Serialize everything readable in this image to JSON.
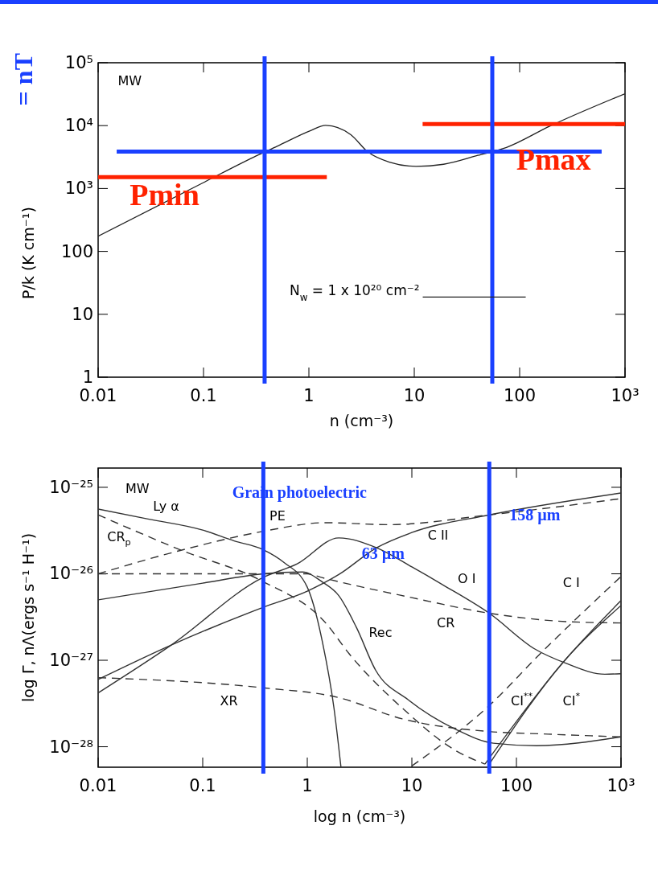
{
  "chart_data": [
    {
      "type": "line",
      "xlabel": "n (cm⁻³)",
      "ylabel": "P/k (K cm⁻¹)",
      "log": "xy",
      "legend": "bottom",
      "xlim": [
        0.01,
        1000
      ],
      "ylim": [
        1,
        100000
      ],
      "xticks": [
        0.01,
        0.1,
        1,
        10,
        100,
        {
          "value": 1000,
          "label": "10³"
        }
      ],
      "yticks": [
        1,
        10,
        100,
        {
          "value": 1000,
          "label": "10³"
        },
        {
          "value": 10000,
          "label": "10⁴"
        },
        {
          "value": 100000,
          "label": "10⁵"
        }
      ],
      "annotations": [
        "MW",
        "= nT",
        {
          "text": "Pmin",
          "x": 0.03,
          "y": 1520
        },
        {
          "text": "Pmax",
          "x": 250,
          "y": 10600
        }
      ],
      "ref_lines": [
        {
          "axis": "x",
          "value": 0.38,
          "color": "#1a40ff"
        },
        {
          "axis": "x",
          "value": 55,
          "color": "#1a40ff"
        }
      ],
      "series": [
        {
          "name": "N$_{w}$ = 1 x 10²⁰ cm⁻²",
          "color": "#222222",
          "line_style": "solid",
          "x": [
            0.01,
            0.1,
            0.3,
            0.5,
            1.04,
            1.44,
            2.5,
            3.6,
            5.8,
            10.4,
            19,
            40,
            75,
            193,
            1000
          ],
          "values": [
            174,
            1245,
            3160,
            4700,
            8350,
            10100,
            7180,
            3860,
            2630,
            2250,
            2430,
            3360,
            4500,
            9800,
            32200
          ]
        },
        {
          "color": "#ff2200",
          "line_style": "solid",
          "x": [
            0.01,
            1.48
          ],
          "values": [
            1520,
            1520
          ]
        },
        {
          "color": "#ff2200",
          "line_style": "solid",
          "x": [
            12,
            1000
          ],
          "values": [
            10600,
            10600
          ]
        },
        {
          "color": "#1a40ff",
          "line_style": "solid",
          "x": [
            0.015,
            600
          ],
          "values": [
            3860,
            3860
          ]
        }
      ]
    },
    {
      "type": "line",
      "xlabel": "log n (cm⁻³)",
      "ylabel": "log Γ, nΛ(ergs s⁻¹ H⁻¹)",
      "log": "xy",
      "xlim": [
        0.01,
        1000
      ],
      "ylim": [
        5.8e-29,
        1.67e-25
      ],
      "xticks": [
        0.01,
        0.1,
        1,
        10,
        100,
        {
          "value": 1000,
          "label": "10³"
        }
      ],
      "yticks": [
        {
          "value": 1e-28,
          "label": "10⁻²⁸"
        },
        {
          "value": 1e-27,
          "label": "10⁻²⁷"
        },
        {
          "value": 1e-26,
          "label": "10⁻²⁶"
        },
        {
          "value": 1e-25,
          "label": "10⁻²⁵"
        }
      ],
      "annotations": [
        "MW",
        "Grain photoelectric",
        "63 µm",
        "158 µm"
      ],
      "ref_lines": [
        {
          "axis": "x",
          "value": 0.38,
          "color": "#1a40ff"
        },
        {
          "axis": "x",
          "value": 55,
          "color": "#1a40ff"
        }
      ],
      "series": [
        {
          "name": "Ly α",
          "color": "#333333",
          "line_style": "solid",
          "x": [
            0.01,
            0.03,
            0.1,
            0.2,
            0.38,
            0.6,
            1,
            1.4,
            1.8,
            2.1
          ],
          "values": [
            5.6e-26,
            4.3e-26,
            3.2e-26,
            2.4e-26,
            1.9e-26,
            1.35e-26,
            7e-27,
            1.6e-27,
            2.8e-28,
            5.8e-29
          ]
        },
        {
          "name": "CR$_{p}$",
          "color": "#333333",
          "line_style": "dashed",
          "x": [
            0.01,
            0.064,
            0.38,
            1.5,
            2.5,
            8.1,
            26,
            50
          ],
          "values": [
            4.8e-26,
            1.85e-26,
            8.1e-27,
            2.7e-27,
            1.2e-27,
            2.8e-28,
            9.1e-29,
            6.3e-29
          ]
        },
        {
          "name": "PE",
          "color": "#333333",
          "line_style": "dashed",
          "x": [
            0.01,
            0.06,
            0.38,
            1.5,
            6,
            55,
            1000
          ],
          "values": [
            1e-26,
            1.85e-26,
            3.1e-26,
            3.9e-26,
            3.7e-26,
            4.8e-26,
            7.4e-26
          ]
        },
        {
          "name": "C II",
          "color": "#333333",
          "line_style": "solid",
          "x": [
            0.01,
            0.05,
            0.38,
            1,
            2,
            4.6,
            10,
            55,
            1000
          ],
          "values": [
            6e-28,
            1.5e-27,
            4.1e-27,
            6.3e-27,
            9.8e-27,
            2e-26,
            3e-26,
            4.8e-26,
            8.6e-26
          ]
        },
        {
          "name": "O I",
          "color": "#333333",
          "line_style": "solid",
          "x": [
            0.01,
            0.05,
            0.38,
            0.8,
            2,
            4.6,
            10,
            20,
            55,
            150,
            300,
            700,
            1000
          ],
          "values": [
            4.2e-28,
            1.5e-27,
            9.1e-27,
            1.3e-26,
            2.6e-26,
            2e-26,
            1.2e-26,
            7.4e-27,
            3.5e-27,
            1.35e-27,
            9.2e-28,
            6.9e-28,
            7e-28
          ]
        },
        {
          "name": "CR",
          "color": "#333333",
          "line_style": "dashed",
          "x": [
            0.01,
            1,
            1.4,
            10,
            55,
            300,
            1000
          ],
          "values": [
            1e-26,
            1e-26,
            9e-27,
            5.3e-27,
            3.5e-27,
            2.8e-27,
            2.7e-27
          ]
        },
        {
          "name": "Rec",
          "color": "#333333",
          "line_style": "solid",
          "x": [
            0.01,
            0.1,
            0.38,
            0.9,
            1.4,
            2,
            2.95,
            4.5,
            9.2,
            26,
            60,
            155,
            1000
          ],
          "values": [
            5e-27,
            7.8e-27,
            1e-26,
            1.05e-26,
            8e-27,
            5.6e-27,
            2.4e-27,
            7.7e-28,
            3.5e-28,
            1.6e-28,
            1.1e-28,
            1.03e-28,
            1.3e-28
          ]
        },
        {
          "name": "XR",
          "color": "#333333",
          "line_style": "dashed",
          "x": [
            0.01,
            0.38,
            2,
            8.1,
            55,
            200,
            1000
          ],
          "values": [
            6.3e-28,
            4.8e-28,
            3.7e-28,
            2.1e-28,
            1.5e-28,
            1.4e-28,
            1.3e-28
          ]
        },
        {
          "name": "C I",
          "color": "#333333",
          "line_style": "dashed",
          "x": [
            10,
            55,
            170,
            1000
          ],
          "values": [
            6e-29,
            3e-28,
            1.2e-27,
            9.3e-27
          ]
        },
        {
          "name": "CI$^{**}$",
          "color": "#333333",
          "line_style": "solid",
          "x": [
            55,
            280,
            1000
          ],
          "values": [
            6.3e-29,
            9.5e-28,
            4.3e-27
          ]
        },
        {
          "name": "CI$^{*}$",
          "color": "#333333",
          "line_style": "solid",
          "x": [
            50,
            280,
            1000
          ],
          "values": [
            6.3e-29,
            9.5e-28,
            4.9e-27
          ]
        }
      ]
    }
  ]
}
